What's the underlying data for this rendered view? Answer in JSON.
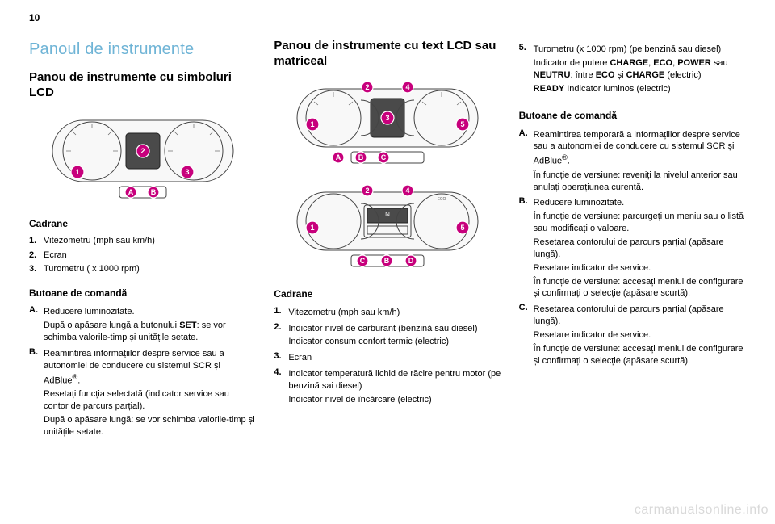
{
  "page_number": "10",
  "watermark": "carmanualsonline.info",
  "col1": {
    "title": "Panoul de instrumente",
    "subtitle": "Panou de instrumente cu simboluri LCD",
    "cadrane_heading": "Cadrane",
    "cadrane": [
      {
        "n": "1.",
        "t": "Vitezometru (mph sau km/h)"
      },
      {
        "n": "2.",
        "t": "Ecran"
      },
      {
        "n": "3.",
        "t": "Turometru ( x 1000 rpm)"
      }
    ],
    "butoane_heading": "Butoane de comandă",
    "butoane": [
      {
        "n": "A.",
        "lines": [
          "Reducere luminozitate.",
          "După o apăsare lungă a butonului <b>SET</b>: se vor schimba valorile-timp și unitățile setate."
        ]
      },
      {
        "n": "B.",
        "lines": [
          "Reamintirea informațiilor despre service sau a autonomiei de conducere cu sistemul SCR și AdBlue<sup>®</sup>.",
          "Resetați funcția selectată (indicator service sau contor de parcurs parțial).",
          "După o apăsare lungă: se vor schimba valorile-timp și unitățile setate."
        ]
      }
    ],
    "markers": {
      "dials": [
        "1",
        "2",
        "3"
      ],
      "buttons": [
        "A",
        "B"
      ]
    }
  },
  "col2": {
    "subtitle": "Panou de instrumente cu text LCD sau matriceal",
    "cadrane_heading": "Cadrane",
    "cadrane": [
      {
        "n": "1.",
        "lines": [
          "Vitezometru (mph sau km/h)"
        ]
      },
      {
        "n": "2.",
        "lines": [
          "Indicator nivel de carburant (benzină sau diesel)",
          "Indicator consum confort termic (electric)"
        ]
      },
      {
        "n": "3.",
        "lines": [
          "Ecran"
        ]
      },
      {
        "n": "4.",
        "lines": [
          "Indicator temperatură lichid de răcire pentru motor (pe benzină sai diesel)",
          "Indicator nivel de încărcare (electric)"
        ]
      }
    ],
    "cluster1_markers": {
      "top": [
        "2",
        "4"
      ],
      "mid": [
        "1",
        "3",
        "5"
      ],
      "bottom": [
        "A",
        "B",
        "C"
      ]
    },
    "cluster2_markers": {
      "top": [
        "2",
        "4"
      ],
      "mid": [
        "1",
        "5"
      ],
      "bottom": [
        "C",
        "B",
        "D"
      ]
    }
  },
  "col3": {
    "item5": {
      "n": "5.",
      "lines": [
        "Turometru (x 1000 rpm) (pe benzină sau diesel)",
        "Indicator de putere <b>CHARGE</b>, <b>ECO</b>, <b>POWER</b> sau <b>NEUTRU</b>: între <b>ECO</b> și <b>CHARGE</b> (electric)",
        "<b>READY</b> Indicator luminos (electric)"
      ]
    },
    "butoane_heading": "Butoane de comandă",
    "butoane": [
      {
        "n": "A.",
        "lines": [
          "Reamintirea temporară a informațiilor despre service sau a autonomiei de conducere cu sistemul SCR și AdBlue<sup>®</sup>.",
          "În funcție de versiune: reveniți la nivelul anterior sau anulați operațiunea curentă."
        ]
      },
      {
        "n": "B.",
        "lines": [
          "Reducere luminozitate.",
          "În funcție de versiune: parcurgeți un meniu sau o listă sau modificați o valoare.",
          "Resetarea contorului de parcurs parțial (apăsare lungă).",
          "Resetare indicator de service.",
          "În funcție de versiune: accesați meniul de configurare și confirmați o selecție (apăsare scurtă)."
        ]
      },
      {
        "n": "C.",
        "lines": [
          "Resetarea contorului de parcurs parțial (apăsare lungă).",
          "Resetare indicator de service.",
          "În funcție de versiune: accesați meniul de configurare și confirmați o selecție (apăsare scurtă)."
        ]
      }
    ]
  },
  "colors": {
    "heading": "#6fb4d6",
    "marker": "#c7007c",
    "text": "#000000",
    "watermark": "#d9d9d9"
  }
}
